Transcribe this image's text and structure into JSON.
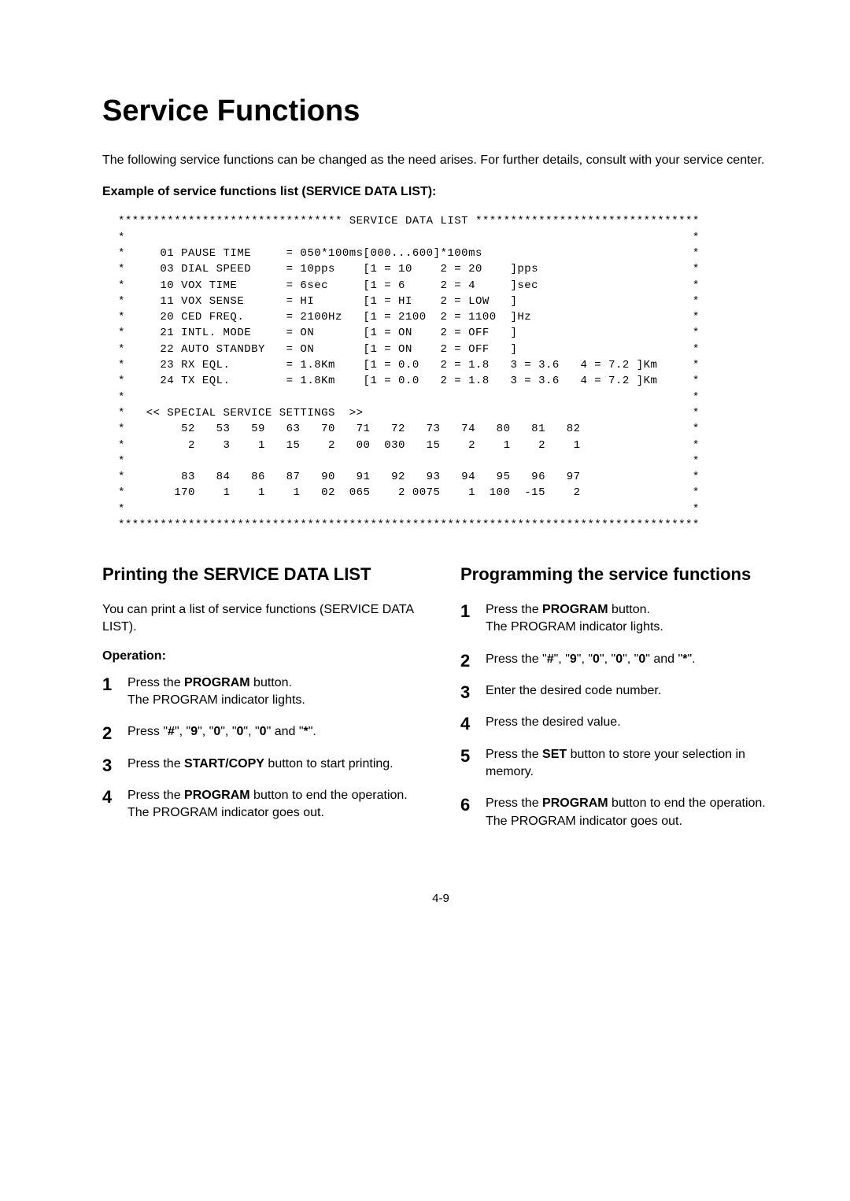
{
  "title": "Service Functions",
  "intro": "The following service functions can be changed as the need arises. For further details, consult with your service center.",
  "example_heading": "Example of service functions list (SERVICE DATA LIST):",
  "listing": "******************************** SERVICE DATA LIST ********************************\n*                                                                                 *\n*     01 PAUSE TIME     = 050*100ms[000...600]*100ms                              *\n*     03 DIAL SPEED     = 10pps    [1 = 10    2 = 20    ]pps                      *\n*     10 VOX TIME       = 6sec     [1 = 6     2 = 4     ]sec                      *\n*     11 VOX SENSE      = HI       [1 = HI    2 = LOW   ]                         *\n*     20 CED FREQ.      = 2100Hz   [1 = 2100  2 = 1100  ]Hz                       *\n*     21 INTL. MODE     = ON       [1 = ON    2 = OFF   ]                         *\n*     22 AUTO STANDBY   = ON       [1 = ON    2 = OFF   ]                         *\n*     23 RX EQL.        = 1.8Km    [1 = 0.0   2 = 1.8   3 = 3.6   4 = 7.2 ]Km     *\n*     24 TX EQL.        = 1.8Km    [1 = 0.0   2 = 1.8   3 = 3.6   4 = 7.2 ]Km     *\n*                                                                                 *\n*   << SPECIAL SERVICE SETTINGS  >>                                               *\n*        52   53   59   63   70   71   72   73   74   80   81   82                *\n*         2    3    1   15    2   00  030   15    2    1    2    1                *\n*                                                                                 *\n*        83   84   86   87   90   91   92   93   94   95   96   97                *\n*       170    1    1    1   02  065    2 0075    1  100  -15    2                *\n*                                                                                 *\n***********************************************************************************",
  "left": {
    "heading": "Printing the SERVICE DATA LIST",
    "para": "You can print a list of service functions (SERVICE DATA LIST).",
    "operation_label": "Operation:",
    "steps": [
      "Press the <b>PROGRAM</b> button.<br>The PROGRAM indicator lights.",
      "Press \"<b>#</b>\", \"<b>9</b>\", \"<b>0</b>\", \"<b>0</b>\", \"<b>0</b>\" and \"<b>*</b>\".",
      "Press the <b>START/COPY</b> button to start printing.",
      "Press the <b>PROGRAM</b> button to end the operation.<br>The PROGRAM indicator goes out."
    ]
  },
  "right": {
    "heading": "Programming the service functions",
    "steps": [
      "Press the <b>PROGRAM</b> button.<br>The PROGRAM indicator lights.",
      "Press the \"<b>#</b>\", \"<b>9</b>\", \"<b>0</b>\", \"<b>0</b>\", \"<b>0</b>\" and \"<b>*</b>\".",
      "Enter the desired code number.",
      "Press the desired value.",
      "Press the <b>SET</b> button to store your selection in memory.",
      "Press the <b>PROGRAM</b> button to end the operation.<br>The PROGRAM indicator goes out."
    ]
  },
  "page_number": "4-9"
}
